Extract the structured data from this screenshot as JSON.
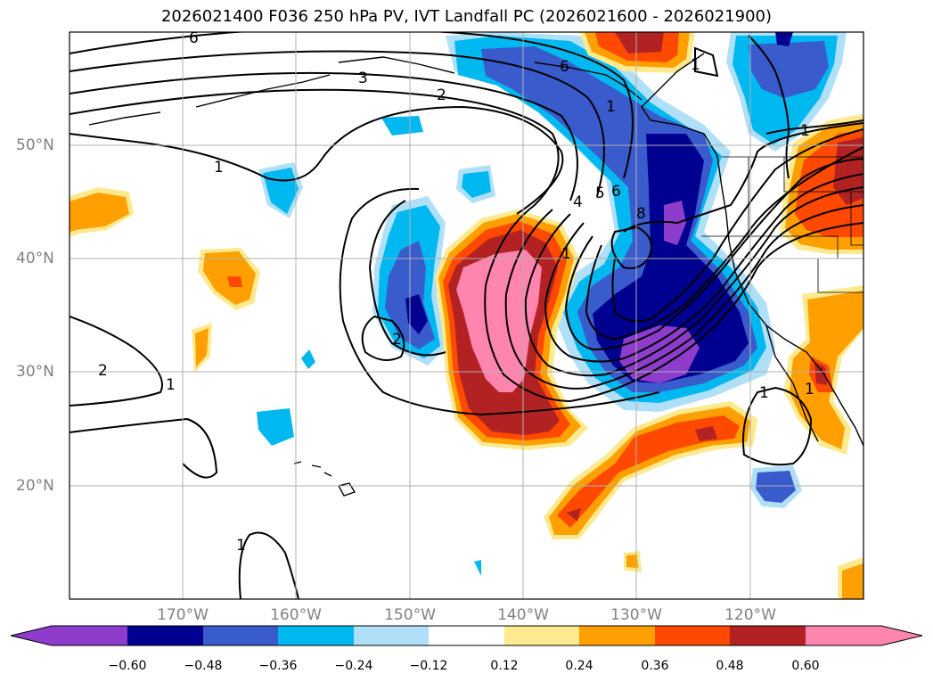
{
  "title": "2026021400 F036 250 hPa PV, IVT Landfall PC (2026021600 - 2026021900)",
  "latitudes": [
    "50°N",
    "40°N",
    "30°N",
    "20°N"
  ],
  "longitudes": [
    "170°W",
    "160°W",
    "150°W",
    "140°W",
    "130°W",
    "120°W"
  ],
  "contour_labels": [
    "6",
    "3",
    "2",
    "1",
    "1",
    "2",
    "1",
    "4",
    "5",
    "6",
    "8",
    "1",
    "2",
    "1",
    "1",
    "6",
    "1",
    "1",
    "1"
  ],
  "colorbar": {
    "ticks": [
      "−0.60",
      "−0.48",
      "−0.36",
      "−0.24",
      "−0.12",
      "0.12",
      "0.24",
      "0.36",
      "0.48",
      "0.60"
    ],
    "colors": [
      "#8e3ccc",
      "#000090",
      "#3a5bcc",
      "#00b8f0",
      "#afe0f8",
      "#ffffff",
      "#fde98e",
      "#ffa000",
      "#ff4800",
      "#b22222",
      "#ff85ae"
    ]
  }
}
